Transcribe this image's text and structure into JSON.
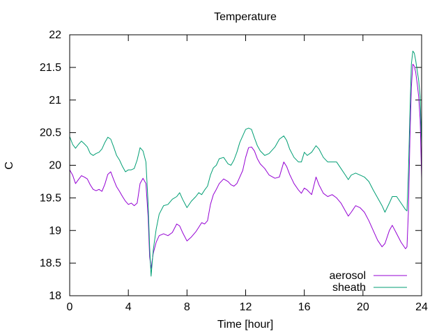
{
  "chart_data": {
    "type": "line",
    "title": "Temperature",
    "xlabel": "Time [hour]",
    "ylabel": "C",
    "xlim": [
      0,
      24
    ],
    "ylim": [
      18,
      22
    ],
    "x_ticks": [
      "0",
      "4",
      "8",
      "12",
      "16",
      "20",
      "24"
    ],
    "y_ticks": [
      "18",
      "18.5",
      "19",
      "19.5",
      "20",
      "20.5",
      "21",
      "21.5",
      "22"
    ],
    "grid": false,
    "legend_position": "bottom-right",
    "series": [
      {
        "name": "aerosol",
        "color": "#9400d3",
        "points": [
          [
            0,
            19.93
          ],
          [
            0.2,
            19.85
          ],
          [
            0.4,
            19.72
          ],
          [
            0.6,
            19.78
          ],
          [
            0.8,
            19.84
          ],
          [
            1.0,
            19.82
          ],
          [
            1.2,
            19.79
          ],
          [
            1.4,
            19.7
          ],
          [
            1.6,
            19.63
          ],
          [
            1.8,
            19.61
          ],
          [
            2.0,
            19.63
          ],
          [
            2.2,
            19.6
          ],
          [
            2.4,
            19.71
          ],
          [
            2.6,
            19.86
          ],
          [
            2.8,
            19.9
          ],
          [
            3.0,
            19.78
          ],
          [
            3.2,
            19.67
          ],
          [
            3.4,
            19.6
          ],
          [
            3.6,
            19.52
          ],
          [
            3.8,
            19.45
          ],
          [
            4.0,
            19.4
          ],
          [
            4.2,
            19.42
          ],
          [
            4.4,
            19.38
          ],
          [
            4.6,
            19.42
          ],
          [
            4.8,
            19.72
          ],
          [
            5.0,
            19.8
          ],
          [
            5.2,
            19.72
          ],
          [
            5.35,
            19.2
          ],
          [
            5.45,
            18.6
          ],
          [
            5.55,
            18.42
          ],
          [
            5.7,
            18.65
          ],
          [
            5.9,
            18.82
          ],
          [
            6.1,
            18.92
          ],
          [
            6.4,
            18.95
          ],
          [
            6.7,
            18.92
          ],
          [
            7.0,
            18.97
          ],
          [
            7.3,
            19.1
          ],
          [
            7.5,
            19.07
          ],
          [
            7.7,
            18.97
          ],
          [
            8.0,
            18.84
          ],
          [
            8.3,
            18.9
          ],
          [
            8.6,
            18.98
          ],
          [
            8.8,
            19.05
          ],
          [
            9.0,
            19.12
          ],
          [
            9.2,
            19.1
          ],
          [
            9.4,
            19.15
          ],
          [
            9.6,
            19.4
          ],
          [
            9.8,
            19.55
          ],
          [
            10.0,
            19.63
          ],
          [
            10.2,
            19.72
          ],
          [
            10.5,
            19.79
          ],
          [
            10.8,
            19.75
          ],
          [
            11.0,
            19.7
          ],
          [
            11.2,
            19.68
          ],
          [
            11.4,
            19.72
          ],
          [
            11.6,
            19.82
          ],
          [
            11.8,
            19.92
          ],
          [
            12.0,
            20.12
          ],
          [
            12.2,
            20.27
          ],
          [
            12.4,
            20.28
          ],
          [
            12.6,
            20.22
          ],
          [
            12.8,
            20.1
          ],
          [
            13.0,
            20.02
          ],
          [
            13.3,
            19.95
          ],
          [
            13.6,
            19.85
          ],
          [
            14.0,
            19.8
          ],
          [
            14.3,
            19.82
          ],
          [
            14.6,
            20.05
          ],
          [
            14.8,
            19.98
          ],
          [
            15.0,
            19.86
          ],
          [
            15.3,
            19.72
          ],
          [
            15.6,
            19.62
          ],
          [
            15.8,
            19.57
          ],
          [
            16.0,
            19.65
          ],
          [
            16.2,
            19.62
          ],
          [
            16.5,
            19.55
          ],
          [
            16.8,
            19.82
          ],
          [
            17.0,
            19.7
          ],
          [
            17.3,
            19.57
          ],
          [
            17.6,
            19.52
          ],
          [
            17.9,
            19.55
          ],
          [
            18.2,
            19.5
          ],
          [
            18.5,
            19.42
          ],
          [
            18.8,
            19.3
          ],
          [
            19.0,
            19.22
          ],
          [
            19.2,
            19.28
          ],
          [
            19.5,
            19.38
          ],
          [
            19.8,
            19.35
          ],
          [
            20.1,
            19.28
          ],
          [
            20.4,
            19.15
          ],
          [
            20.7,
            19.0
          ],
          [
            21.0,
            18.85
          ],
          [
            21.3,
            18.75
          ],
          [
            21.5,
            18.8
          ],
          [
            21.8,
            19.0
          ],
          [
            22.0,
            19.08
          ],
          [
            22.3,
            18.95
          ],
          [
            22.6,
            18.82
          ],
          [
            22.9,
            18.72
          ],
          [
            23.0,
            18.75
          ],
          [
            23.1,
            19.3
          ],
          [
            23.2,
            20.4
          ],
          [
            23.3,
            21.2
          ],
          [
            23.4,
            21.55
          ],
          [
            23.5,
            21.52
          ],
          [
            23.6,
            21.42
          ],
          [
            23.7,
            21.25
          ],
          [
            23.8,
            21.05
          ],
          [
            23.9,
            20.7
          ],
          [
            24.0,
            19.8
          ]
        ]
      },
      {
        "name": "sheath",
        "color": "#009e73",
        "points": [
          [
            0,
            20.44
          ],
          [
            0.2,
            20.32
          ],
          [
            0.4,
            20.26
          ],
          [
            0.6,
            20.32
          ],
          [
            0.8,
            20.37
          ],
          [
            1.0,
            20.33
          ],
          [
            1.2,
            20.28
          ],
          [
            1.4,
            20.18
          ],
          [
            1.6,
            20.15
          ],
          [
            1.8,
            20.18
          ],
          [
            2.0,
            20.2
          ],
          [
            2.2,
            20.25
          ],
          [
            2.4,
            20.35
          ],
          [
            2.6,
            20.43
          ],
          [
            2.8,
            20.4
          ],
          [
            3.0,
            20.28
          ],
          [
            3.2,
            20.15
          ],
          [
            3.4,
            20.08
          ],
          [
            3.6,
            19.98
          ],
          [
            3.8,
            19.9
          ],
          [
            4.0,
            19.93
          ],
          [
            4.2,
            19.93
          ],
          [
            4.4,
            19.95
          ],
          [
            4.6,
            20.08
          ],
          [
            4.8,
            20.27
          ],
          [
            5.0,
            20.22
          ],
          [
            5.2,
            20.05
          ],
          [
            5.35,
            19.4
          ],
          [
            5.45,
            18.75
          ],
          [
            5.55,
            18.3
          ],
          [
            5.7,
            18.7
          ],
          [
            5.9,
            19.02
          ],
          [
            6.1,
            19.25
          ],
          [
            6.4,
            19.38
          ],
          [
            6.7,
            19.4
          ],
          [
            7.0,
            19.48
          ],
          [
            7.3,
            19.52
          ],
          [
            7.5,
            19.58
          ],
          [
            7.7,
            19.48
          ],
          [
            8.0,
            19.35
          ],
          [
            8.3,
            19.45
          ],
          [
            8.6,
            19.52
          ],
          [
            8.8,
            19.58
          ],
          [
            9.0,
            19.55
          ],
          [
            9.2,
            19.62
          ],
          [
            9.4,
            19.68
          ],
          [
            9.6,
            19.85
          ],
          [
            9.8,
            19.96
          ],
          [
            10.0,
            20.0
          ],
          [
            10.2,
            20.1
          ],
          [
            10.5,
            20.12
          ],
          [
            10.8,
            20.02
          ],
          [
            11.0,
            20.0
          ],
          [
            11.2,
            20.08
          ],
          [
            11.4,
            20.2
          ],
          [
            11.6,
            20.35
          ],
          [
            11.8,
            20.45
          ],
          [
            12.0,
            20.55
          ],
          [
            12.2,
            20.57
          ],
          [
            12.4,
            20.55
          ],
          [
            12.6,
            20.42
          ],
          [
            12.8,
            20.3
          ],
          [
            13.0,
            20.22
          ],
          [
            13.3,
            20.15
          ],
          [
            13.6,
            20.18
          ],
          [
            14.0,
            20.28
          ],
          [
            14.3,
            20.4
          ],
          [
            14.6,
            20.45
          ],
          [
            14.8,
            20.38
          ],
          [
            15.0,
            20.25
          ],
          [
            15.3,
            20.12
          ],
          [
            15.6,
            20.05
          ],
          [
            15.8,
            20.05
          ],
          [
            16.0,
            20.2
          ],
          [
            16.2,
            20.15
          ],
          [
            16.5,
            20.2
          ],
          [
            16.8,
            20.3
          ],
          [
            17.0,
            20.25
          ],
          [
            17.3,
            20.12
          ],
          [
            17.6,
            20.05
          ],
          [
            17.9,
            20.05
          ],
          [
            18.2,
            20.05
          ],
          [
            18.5,
            19.95
          ],
          [
            18.8,
            19.85
          ],
          [
            19.0,
            19.78
          ],
          [
            19.2,
            19.85
          ],
          [
            19.5,
            19.88
          ],
          [
            19.8,
            19.85
          ],
          [
            20.1,
            19.82
          ],
          [
            20.4,
            19.75
          ],
          [
            20.7,
            19.62
          ],
          [
            21.0,
            19.5
          ],
          [
            21.3,
            19.38
          ],
          [
            21.5,
            19.28
          ],
          [
            21.8,
            19.42
          ],
          [
            22.0,
            19.52
          ],
          [
            22.3,
            19.52
          ],
          [
            22.6,
            19.42
          ],
          [
            22.9,
            19.32
          ],
          [
            23.0,
            19.3
          ],
          [
            23.1,
            19.9
          ],
          [
            23.2,
            20.8
          ],
          [
            23.3,
            21.55
          ],
          [
            23.4,
            21.75
          ],
          [
            23.5,
            21.72
          ],
          [
            23.6,
            21.6
          ],
          [
            23.7,
            21.45
          ],
          [
            23.8,
            21.3
          ],
          [
            23.9,
            21.05
          ],
          [
            24.0,
            20.3
          ]
        ]
      }
    ]
  }
}
